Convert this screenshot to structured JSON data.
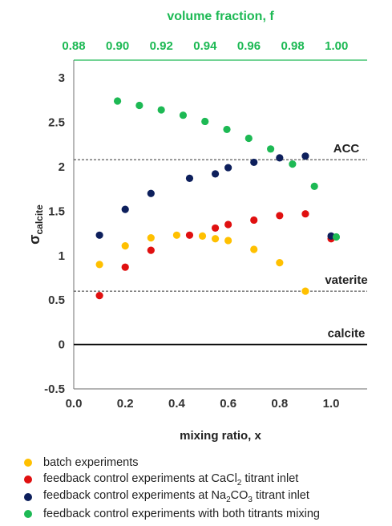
{
  "chart_data": {
    "type": "scatter",
    "title": "",
    "xlabel": "mixing ratio, x",
    "ylabel_main": "σ",
    "ylabel_sub": "calcite",
    "x2label": "volume fraction, f",
    "xlim": [
      0,
      1.14
    ],
    "ylim": [
      -0.5,
      3.2
    ],
    "x_ticks": [
      "0.0",
      "0.2",
      "0.4",
      "0.6",
      "0.8",
      "1.0"
    ],
    "y_ticks": [
      "-0.5",
      "0",
      "0.5",
      "1",
      "1.5",
      "2",
      "2.5",
      "3"
    ],
    "x2lim": [
      0.88,
      1.014
    ],
    "x2_ticks": [
      "0.88",
      "0.90",
      "0.92",
      "0.94",
      "0.96",
      "0.98",
      "1.00"
    ],
    "grid": false,
    "legend_position": "bottom",
    "reference_lines": [
      {
        "label": "ACC",
        "y": 2.08,
        "style": "dashed"
      },
      {
        "label": "vaterite",
        "y": 0.6,
        "style": "dashed"
      },
      {
        "label": "calcite",
        "y": 0.0,
        "style": "solid"
      }
    ],
    "series": [
      {
        "name": "batch experiments",
        "color": "#FFC000",
        "points": [
          [
            0.1,
            0.9
          ],
          [
            0.2,
            1.11
          ],
          [
            0.3,
            1.2
          ],
          [
            0.4,
            1.23
          ],
          [
            0.5,
            1.22
          ],
          [
            0.55,
            1.19
          ],
          [
            0.6,
            1.17
          ],
          [
            0.7,
            1.07
          ],
          [
            0.8,
            0.92
          ],
          [
            0.9,
            0.6
          ]
        ]
      },
      {
        "name": "feedback control experiments at CaCl",
        "name_sub": "2",
        "name_tail": " titrant inlet",
        "color": "#E01010",
        "points": [
          [
            0.1,
            0.55
          ],
          [
            0.2,
            0.87
          ],
          [
            0.3,
            1.06
          ],
          [
            0.45,
            1.23
          ],
          [
            0.55,
            1.31
          ],
          [
            0.6,
            1.35
          ],
          [
            0.7,
            1.4
          ],
          [
            0.8,
            1.45
          ],
          [
            0.9,
            1.47
          ],
          [
            1.0,
            1.19
          ]
        ]
      },
      {
        "name": "feedback control experiments at Na",
        "name_sub": "2",
        "name_mid": "CO",
        "name_sub2": "3",
        "name_tail": " titrant inlet",
        "color": "#0D1F5C",
        "points": [
          [
            0.1,
            1.23
          ],
          [
            0.2,
            1.52
          ],
          [
            0.3,
            1.7
          ],
          [
            0.45,
            1.87
          ],
          [
            0.55,
            1.92
          ],
          [
            0.6,
            1.99
          ],
          [
            0.7,
            2.05
          ],
          [
            0.8,
            2.1
          ],
          [
            0.9,
            2.12
          ],
          [
            1.0,
            1.22
          ]
        ]
      },
      {
        "name": "feedback control experiments with both titrants mixing",
        "color": "#1DB954",
        "points": [
          [
            0.17,
            2.74
          ],
          [
            0.255,
            2.69
          ],
          [
            0.34,
            2.64
          ],
          [
            0.425,
            2.58
          ],
          [
            0.51,
            2.51
          ],
          [
            0.595,
            2.42
          ],
          [
            0.68,
            2.32
          ],
          [
            0.765,
            2.2
          ],
          [
            0.85,
            2.03
          ],
          [
            0.935,
            1.78
          ],
          [
            1.02,
            1.21
          ]
        ]
      }
    ]
  },
  "colors": {
    "top_axis": "#1DB954",
    "axis": "#888888"
  }
}
